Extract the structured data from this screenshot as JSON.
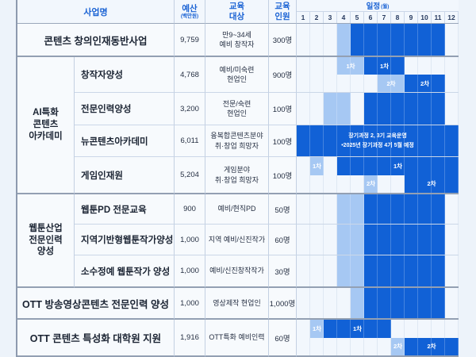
{
  "header": {
    "program": "사업명",
    "budget": "예산",
    "budget_unit": "(백만원)",
    "target_line1": "교육",
    "target_line2": "대상",
    "capacity_line1": "교육",
    "capacity_line2": "인원",
    "schedule": "일정",
    "schedule_unit": "(월)"
  },
  "colors": {
    "dark_bar": "#1161d6",
    "light_bar": "#a6c8f3",
    "header_text": "#1b63d4",
    "body_text": "#1b2433",
    "background": "#edf3fa"
  },
  "chart_data": {
    "type": "gantt",
    "title": "",
    "x_axis": "months 1-12",
    "months": [
      "1",
      "2",
      "3",
      "4",
      "5",
      "6",
      "7",
      "8",
      "9",
      "10",
      "11",
      "12"
    ],
    "shade_meaning": {
      "light": "recruitment period",
      "dark": "education period"
    },
    "rows": [
      {
        "name": "콘텐츠 창의인재동반사업",
        "merged": true,
        "budget": "9,759",
        "target_lines": [
          "만9~34세",
          "예비 창작자"
        ],
        "capacity": "300명",
        "section_end": true,
        "bar_lines": [
          [
            {
              "from": 4,
              "to": 4,
              "shade": "light",
              "label": ""
            },
            {
              "from": 5,
              "to": 11,
              "shade": "dark",
              "label": ""
            }
          ]
        ]
      },
      {
        "group": {
          "label_lines": [
            "AI특화",
            "콘텐츠",
            "아카데미"
          ],
          "span": 4
        },
        "name": "창작자양성",
        "budget": "4,768",
        "target_lines": [
          "예비/미숙련",
          "현업인"
        ],
        "capacity": "900명",
        "bar_lines": [
          [
            {
              "from": 4,
              "to": 5,
              "shade": "light",
              "label": "1차"
            },
            {
              "from": 6,
              "to": 8,
              "shade": "dark",
              "label": "1차"
            }
          ],
          [
            {
              "from": 7,
              "to": 8,
              "shade": "light",
              "label": "2차"
            },
            {
              "from": 9,
              "to": 11,
              "shade": "dark",
              "label": "2차"
            }
          ]
        ]
      },
      {
        "name": "전문인력양성",
        "budget": "3,200",
        "target_lines": [
          "전문/숙련",
          "현업인"
        ],
        "capacity": "100명",
        "bar_lines": [
          [
            {
              "from": 3,
              "to": 4,
              "shade": "light",
              "label": ""
            },
            {
              "from": 6,
              "to": 11,
              "shade": "dark",
              "label": ""
            }
          ]
        ]
      },
      {
        "name": "뉴콘텐츠아카데미",
        "budget": "6,011",
        "target_lines": [
          "융복합콘텐츠분야",
          "취·창업 희망자"
        ],
        "capacity": "100명",
        "bar_lines": [
          [
            {
              "from": 1,
              "to": 12,
              "shade": "dark",
              "label": ""
            }
          ]
        ],
        "note_lines": [
          "장기과정 2, 3기 교육운영",
          "•2025년 장기과정 4기 5월 예정"
        ]
      },
      {
        "name": "게임인재원",
        "budget": "5,204",
        "target_lines": [
          "게임분야",
          "취·창업 희망자"
        ],
        "capacity": "100명",
        "section_end": true,
        "bar_lines": [
          [
            {
              "from": 2,
              "to": 2,
              "shade": "light",
              "label": "1차"
            },
            {
              "from": 4,
              "to": 12,
              "shade": "dark",
              "label": "1차"
            }
          ],
          [
            {
              "from": 6,
              "to": 6,
              "shade": "light",
              "label": "2차"
            },
            {
              "from": 9,
              "to": 12,
              "shade": "dark",
              "label": "2차"
            }
          ]
        ]
      },
      {
        "group": {
          "label_lines": [
            "웹툰산업",
            "전문인력",
            "양성"
          ],
          "span": 3
        },
        "name": "웹툰PD 전문교육",
        "budget": "900",
        "target_lines": [
          "예비/현직PD"
        ],
        "capacity": "50명",
        "bar_lines": [
          [
            {
              "from": 4,
              "to": 5,
              "shade": "light",
              "label": ""
            },
            {
              "from": 6,
              "to": 11,
              "shade": "dark",
              "label": ""
            }
          ]
        ]
      },
      {
        "name": "지역기반형웹툰작가양성",
        "budget": "1,000",
        "target_lines": [
          "지역 예비/신진작가"
        ],
        "capacity": "60명",
        "bar_lines": [
          [
            {
              "from": 4,
              "to": 5,
              "shade": "light",
              "label": ""
            },
            {
              "from": 6,
              "to": 11,
              "shade": "dark",
              "label": ""
            }
          ]
        ]
      },
      {
        "name": "소수정예 웹툰작가 양성",
        "budget": "1,000",
        "target_lines": [
          "예비/신진창작작가"
        ],
        "capacity": "30명",
        "section_end": true,
        "bar_lines": [
          [
            {
              "from": 4,
              "to": 5,
              "shade": "light",
              "label": ""
            },
            {
              "from": 6,
              "to": 11,
              "shade": "dark",
              "label": ""
            }
          ]
        ]
      },
      {
        "name": "OTT 방송영상콘텐츠 전문인력 양성",
        "merged": true,
        "budget": "1,000",
        "target_lines": [
          "영상제작 현업인"
        ],
        "capacity": "1,000명",
        "section_end": true,
        "bar_lines": [
          [
            {
              "from": 5,
              "to": 5,
              "shade": "light",
              "label": ""
            },
            {
              "from": 6,
              "to": 11,
              "shade": "dark",
              "label": ""
            }
          ]
        ]
      },
      {
        "name": "OTT 콘텐츠 특성화 대학원 지원",
        "merged": true,
        "budget": "1,916",
        "target_lines": [
          "OTT특화 예비인력"
        ],
        "capacity": "60명",
        "section_end": true,
        "bar_lines": [
          [
            {
              "from": 2,
              "to": 2,
              "shade": "light",
              "label": "1차"
            },
            {
              "from": 3,
              "to": 7,
              "shade": "dark",
              "label": "1차"
            }
          ],
          [
            {
              "from": 8,
              "to": 8,
              "shade": "light",
              "label": "2차"
            },
            {
              "from": 9,
              "to": 12,
              "shade": "dark",
              "label": "2차"
            }
          ]
        ]
      }
    ]
  }
}
